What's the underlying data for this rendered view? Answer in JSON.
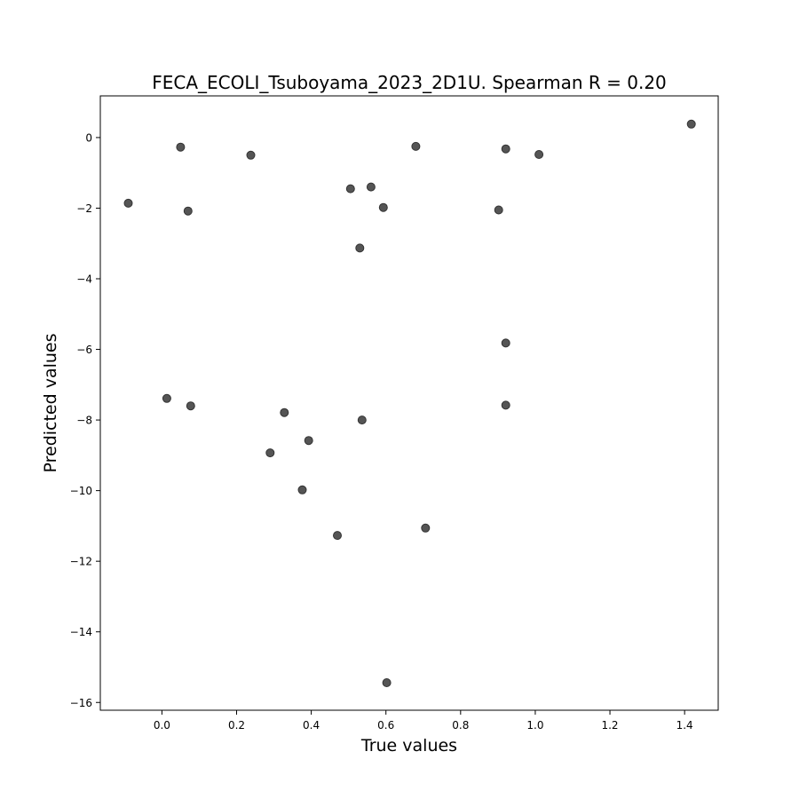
{
  "chart_data": {
    "type": "scatter",
    "title": "FECA_ECOLI_Tsuboyama_2023_2D1U. Spearman R = 0.20",
    "xlabel": "True values",
    "ylabel": "Predicted values",
    "xlim": [
      -0.165,
      1.49
    ],
    "ylim": [
      -16.22,
      1.18
    ],
    "xticks": [
      0.0,
      0.2,
      0.4,
      0.6,
      0.8,
      1.0,
      1.2,
      1.4
    ],
    "xtick_labels": [
      "0.0",
      "0.2",
      "0.4",
      "0.6",
      "0.8",
      "1.0",
      "1.2",
      "1.4"
    ],
    "yticks": [
      0,
      -2,
      -4,
      -6,
      -8,
      -10,
      -12,
      -14,
      -16
    ],
    "ytick_labels": [
      "0",
      "−2",
      "−4",
      "−6",
      "−8",
      "−10",
      "−12",
      "−14",
      "−16"
    ],
    "grid": false,
    "marker_color": "#555555",
    "marker_edge_color": "#333333",
    "points": [
      {
        "x": -0.09,
        "y": -1.86
      },
      {
        "x": 0.013,
        "y": -7.39
      },
      {
        "x": 0.05,
        "y": -0.27
      },
      {
        "x": 0.07,
        "y": -2.08
      },
      {
        "x": 0.077,
        "y": -7.6
      },
      {
        "x": 0.238,
        "y": -0.5
      },
      {
        "x": 0.29,
        "y": -8.93
      },
      {
        "x": 0.328,
        "y": -7.79
      },
      {
        "x": 0.376,
        "y": -9.98
      },
      {
        "x": 0.393,
        "y": -8.58
      },
      {
        "x": 0.47,
        "y": -11.27
      },
      {
        "x": 0.505,
        "y": -1.45
      },
      {
        "x": 0.53,
        "y": -3.13
      },
      {
        "x": 0.536,
        "y": -8.0
      },
      {
        "x": 0.56,
        "y": -1.4
      },
      {
        "x": 0.593,
        "y": -1.98
      },
      {
        "x": 0.602,
        "y": -15.44
      },
      {
        "x": 0.68,
        "y": -0.25
      },
      {
        "x": 0.706,
        "y": -11.06
      },
      {
        "x": 0.902,
        "y": -2.05
      },
      {
        "x": 0.921,
        "y": -0.32
      },
      {
        "x": 0.921,
        "y": -5.82
      },
      {
        "x": 0.921,
        "y": -7.58
      },
      {
        "x": 1.01,
        "y": -0.48
      },
      {
        "x": 1.418,
        "y": 0.38
      }
    ]
  }
}
